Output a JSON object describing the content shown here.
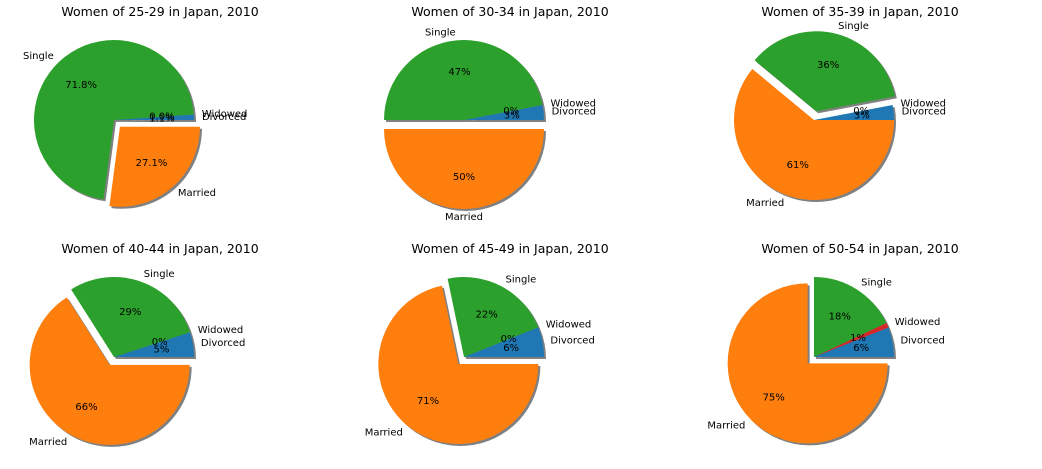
{
  "page_title": "",
  "chart_data": [
    {
      "type": "pie",
      "title": "Women of 25-29 in Japan, 2010",
      "labels": [
        "Divorced",
        "Widowed",
        "Single",
        "Married"
      ],
      "values": [
        1.1,
        0.0,
        71.8,
        27.1
      ],
      "pct_labels": [
        "1.1%",
        "0.0%",
        "71.8%",
        "27.1%"
      ],
      "explode": [
        "Married"
      ],
      "shadow": true
    },
    {
      "type": "pie",
      "title": "Women of 30-34 in Japan, 2010",
      "labels": [
        "Divorced",
        "Widowed",
        "Single",
        "Married"
      ],
      "values": [
        3,
        0,
        47,
        50
      ],
      "pct_labels": [
        "3%",
        "0%",
        "47%",
        "50%"
      ],
      "explode": [
        "Married"
      ],
      "shadow": true
    },
    {
      "type": "pie",
      "title": "Women of 35-39 in Japan, 2010",
      "labels": [
        "Divorced",
        "Widowed",
        "Single",
        "Married"
      ],
      "values": [
        3,
        0,
        36,
        61
      ],
      "pct_labels": [
        "3%",
        "0%",
        "36%",
        "61%"
      ],
      "explode": [
        "Single"
      ],
      "shadow": true
    },
    {
      "type": "pie",
      "title": "Women of 40-44 in Japan, 2010",
      "labels": [
        "Divorced",
        "Widowed",
        "Single",
        "Married"
      ],
      "values": [
        5,
        0,
        29,
        66
      ],
      "pct_labels": [
        "5%",
        "0%",
        "29%",
        "66%"
      ],
      "explode": [
        "Married"
      ],
      "shadow": true
    },
    {
      "type": "pie",
      "title": "Women of 45-49 in Japan, 2010",
      "labels": [
        "Divorced",
        "Widowed",
        "Single",
        "Married"
      ],
      "values": [
        6,
        0,
        22,
        71
      ],
      "pct_labels": [
        "6%",
        "0%",
        "22%",
        "71%"
      ],
      "explode": [
        "Married"
      ],
      "shadow": true
    },
    {
      "type": "pie",
      "title": "Women of 50-54 in Japan, 2010",
      "labels": [
        "Divorced",
        "Widowed",
        "Single",
        "Married"
      ],
      "values": [
        6,
        1,
        18,
        75
      ],
      "pct_labels": [
        "6%",
        "1%",
        "18%",
        "75%"
      ],
      "explode": [
        "Married"
      ],
      "shadow": true
    }
  ],
  "colors": {
    "Divorced": "#1f77b4",
    "Widowed": "#d62728",
    "Single": "#2ca02c",
    "Married": "#ff7f0e"
  }
}
